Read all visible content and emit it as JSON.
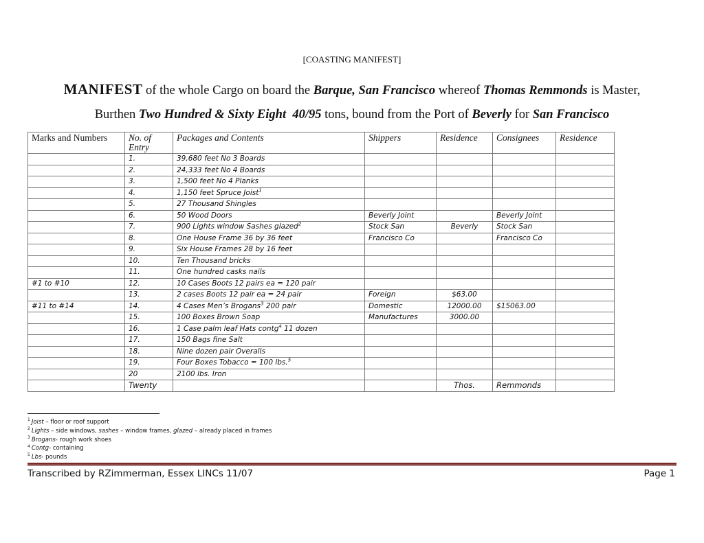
{
  "kicker": "[COASTING MANIFEST]",
  "heading": {
    "big": "MANIFEST",
    "t1": " of the whole Cargo on board the ",
    "vessel": "Barque, San Francisco",
    "t2": " whereof ",
    "master": "Thomas Remmonds",
    "t3": " is Master,"
  },
  "subheading": {
    "t1": "Burthen ",
    "burthen": "Two Hundred & Sixty Eight  40/95",
    "t2": " tons, bound from the Port of ",
    "from": "Beverly",
    "t3": " for ",
    "to": "San Francisco"
  },
  "table": {
    "headers": [
      "Marks and Numbers",
      "No. of Entry",
      "Packages and Contents",
      "Shippers",
      "Residence",
      "Consignees",
      "Residence"
    ],
    "rows": [
      [
        "",
        "1.",
        "39,680 feet No 3 Boards",
        "",
        "",
        "",
        "",
        ""
      ],
      [
        "",
        "2.",
        "24,333 feet No 4 Boards",
        "",
        "",
        "",
        "",
        ""
      ],
      [
        "",
        "3.",
        "1,500 feet No 4 Planks",
        "",
        "",
        "",
        "",
        ""
      ],
      [
        "",
        "4.",
        "1,150 feet Spruce Joist",
        "1",
        "",
        "",
        "",
        ""
      ],
      [
        "",
        "5.",
        "27 Thousand Shingles",
        "",
        "",
        "",
        "",
        ""
      ],
      [
        "",
        "6.",
        "50 Wood Doors",
        "",
        "Beverly Joint",
        "",
        "Beverly Joint",
        ""
      ],
      [
        "",
        "7.",
        "900 Lights window Sashes glazed",
        "2",
        "Stock  San",
        "Beverly",
        "Stock  San",
        ""
      ],
      [
        "",
        "8.",
        "One House Frame 36 by 36 feet",
        "",
        "Francisco Co",
        "",
        "Francisco Co",
        ""
      ],
      [
        "",
        "9.",
        "Six House Frames 28 by 16 feet",
        "",
        "",
        "",
        "",
        ""
      ],
      [
        "",
        "10.",
        "Ten Thousand bricks",
        "",
        "",
        "",
        "",
        ""
      ],
      [
        "",
        "11.",
        "One hundred casks nails",
        "",
        "",
        "",
        "",
        ""
      ],
      [
        "#1 to #10",
        "12.",
        "10 Cases Boots 12 pairs ea = 120 pair",
        "",
        "",
        "",
        "",
        ""
      ],
      [
        "",
        "13.",
        "2 cases Boots 12 pair ea = 24 pair",
        "",
        "Foreign",
        "$63.00",
        "",
        ""
      ],
      [
        "#11 to #14",
        "14.",
        "4 Cases Men’s Brogans",
        "3",
        "Domestic",
        "12000.00",
        "$15063.00",
        ""
      ],
      [
        "",
        "15.",
        "100 Boxes Brown Soap",
        "",
        "Manufactures",
        "3000.00",
        "",
        ""
      ],
      [
        "",
        "16.",
        "1 Case palm leaf Hats contg",
        "4",
        "",
        "",
        "",
        ""
      ],
      [
        "",
        "17.",
        "150 Bags fine Salt",
        "",
        "",
        "",
        "",
        ""
      ],
      [
        "",
        "18.",
        "Nine dozen pair Overalls",
        "",
        "",
        "",
        "",
        ""
      ],
      [
        "",
        "19.",
        "Four Boxes Tobacco = 100 lbs.",
        "5",
        "",
        "",
        "",
        ""
      ],
      [
        "",
        "20",
        "2100 lbs. Iron",
        "",
        "",
        "",
        "",
        ""
      ],
      [
        "",
        "Twenty",
        "",
        "",
        "",
        "Thos.",
        "Remmonds",
        ""
      ]
    ],
    "content_suffix": {
      "13": " 200 pair",
      "15": " 11 dozen"
    }
  },
  "footnotes": [
    {
      "n": "1",
      "term": "Joist",
      "text": " – floor or roof support"
    },
    {
      "n": "2",
      "term": "Lights",
      "text": " – side windows, ",
      "term2": "sashes",
      "text2": " – window frames, ",
      "term3": "glazed",
      "text3": " – already placed in frames"
    },
    {
      "n": "3",
      "term": "Brogans",
      "text": "- rough work shoes"
    },
    {
      "n": "4",
      "term": "Contg",
      "text": "- containing"
    },
    {
      "n": "5",
      "term": "Lbs",
      "text": "- pounds"
    }
  ],
  "footer": {
    "left": "Transcribed by RZimmerman, Essex LINCs 11/07",
    "right": "Page 1"
  },
  "colors": {
    "rule": "#7a2a2a",
    "grid": "#777777"
  }
}
